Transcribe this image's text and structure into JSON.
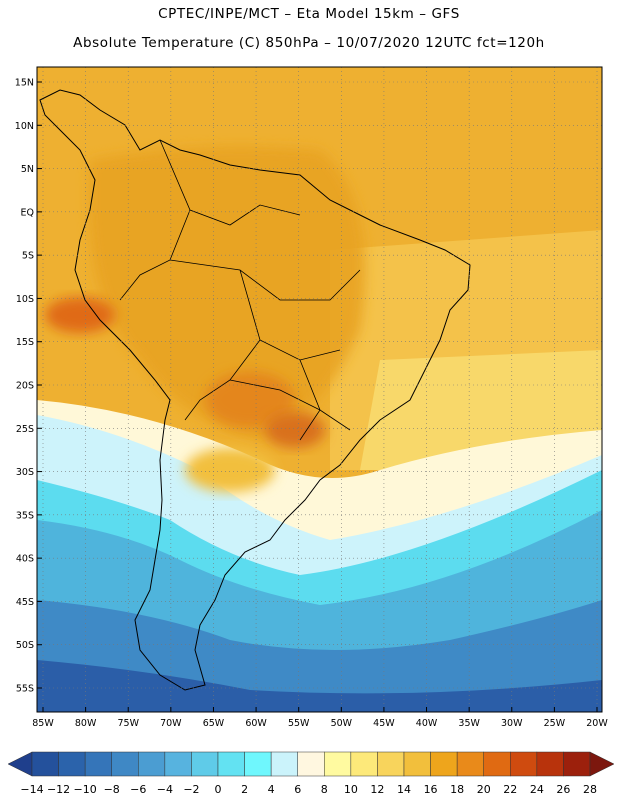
{
  "header": {
    "line1": "CPTEC/INPE/MCT –  Eta Model 15km – GFS",
    "line2": "Absolute Temperature (C) 850hPa – 10/07/2020 12UTC fct=120h"
  },
  "map": {
    "lat_labels": [
      "15N",
      "10N",
      "5N",
      "EQ",
      "5S",
      "10S",
      "15S",
      "20S",
      "25S",
      "30S",
      "35S",
      "40S",
      "45S",
      "50S",
      "55S"
    ],
    "lon_labels": [
      "85W",
      "80W",
      "75W",
      "70W",
      "65W",
      "60W",
      "55W",
      "50W",
      "45W",
      "40W",
      "35W",
      "30W",
      "25W",
      "20W"
    ]
  },
  "colorbar": {
    "labels": [
      "-14",
      "-12",
      "-10",
      "-8",
      "-6",
      "-4",
      "-2",
      "0",
      "2",
      "4",
      "6",
      "8",
      "10",
      "12",
      "14",
      "16",
      "18",
      "20",
      "22",
      "24",
      "26",
      "28"
    ],
    "colors": [
      "#1f3f8c",
      "#24519c",
      "#2b63ab",
      "#3575b9",
      "#3f88c5",
      "#4b9dd2",
      "#57b3df",
      "#5fcbe8",
      "#63e2f2",
      "#6ff7fd",
      "#cbf3fb",
      "#fff7e0",
      "#fffaa0",
      "#fde97a",
      "#f8d45c",
      "#f2bf3c",
      "#eea51c",
      "#e98a1a",
      "#e06a12",
      "#cf4b0f",
      "#b8330c",
      "#9c200c",
      "#7c170e"
    ]
  }
}
